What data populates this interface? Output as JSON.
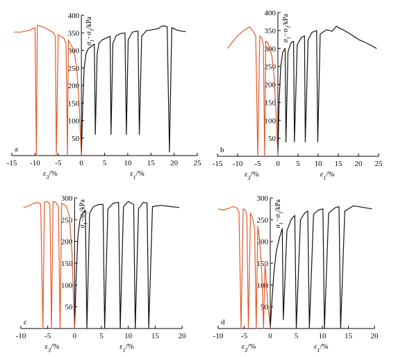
{
  "colors": {
    "axial": "#111111",
    "radial": "#e2582a",
    "axis": "#000000"
  },
  "chart_data": [
    {
      "type": "line",
      "panel_label": "a",
      "xlabel_left": "ε3/%",
      "xlabel_right": "ε1/%",
      "ylabel": "σ1−σ3/kPa",
      "xlim": [
        -15,
        25
      ],
      "ylim": [
        0,
        400
      ],
      "xticks": [
        -15,
        -10,
        -5,
        0,
        5,
        10,
        15,
        20,
        25
      ],
      "yticks": [
        50,
        100,
        150,
        200,
        250,
        300,
        350,
        400
      ],
      "series": [
        {
          "color": "axial",
          "x": [
            0.0,
            0.3,
            0.6,
            1.0,
            1.5,
            2.2,
            2.8,
            3.0,
            3.4,
            3.8,
            4.5,
            5.5,
            6.2,
            6.4,
            6.8,
            7.5,
            8.5,
            9.4,
            9.7,
            10.1,
            11.0,
            12.2,
            12.5,
            13.0,
            14.0,
            15.0,
            16.5,
            17.5,
            18.5,
            19.0,
            19.5,
            20.5,
            21.5,
            22.5
          ],
          "y": [
            0,
            150,
            250,
            290,
            305,
            312,
            318,
            60,
            290,
            320,
            330,
            336,
            340,
            60,
            320,
            342,
            348,
            350,
            60,
            330,
            352,
            355,
            60,
            340,
            356,
            358,
            362,
            370,
            368,
            10,
            365,
            358,
            355,
            353
          ]
        },
        {
          "color": "radial",
          "x": [
            0.0,
            -0.5,
            -1.0,
            -1.5,
            -2.0,
            -2.5,
            -2.8,
            -3.0,
            -3.3,
            -3.8,
            -4.5,
            -5.0,
            -5.4,
            -5.6,
            -6.0,
            -7.0,
            -8.0,
            -9.0,
            -9.5,
            -9.7,
            -10.0,
            -11.0,
            -12.0,
            -13.0,
            -14.5
          ],
          "y": [
            0,
            150,
            250,
            290,
            310,
            320,
            330,
            0,
            320,
            335,
            340,
            345,
            0,
            340,
            350,
            358,
            365,
            370,
            372,
            0,
            365,
            358,
            355,
            352,
            352
          ]
        }
      ]
    },
    {
      "type": "line",
      "panel_label": "b",
      "xlabel_left": "ε3/%",
      "xlabel_right": "ε1/%",
      "ylabel": "σ1−σ3/kPa",
      "xlim": [
        -15,
        25
      ],
      "ylim": [
        0,
        400
      ],
      "xticks": [
        -15,
        -10,
        -5,
        0,
        5,
        10,
        15,
        20,
        25
      ],
      "yticks": [
        50,
        100,
        150,
        200,
        250,
        300,
        350,
        400
      ],
      "series": [
        {
          "color": "axial",
          "x": [
            0.0,
            0.3,
            0.7,
            1.2,
            1.8,
            2.0,
            2.5,
            3.2,
            3.9,
            4.1,
            4.8,
            5.8,
            6.6,
            6.8,
            7.5,
            8.5,
            9.6,
            9.9,
            10.5,
            12.0,
            13.5,
            14.5,
            15.0,
            16.5,
            18.0,
            20.0,
            22.0,
            24.5
          ],
          "y": [
            0,
            150,
            250,
            290,
            300,
            40,
            290,
            315,
            320,
            40,
            310,
            330,
            335,
            40,
            325,
            345,
            350,
            40,
            340,
            352,
            348,
            362,
            358,
            350,
            340,
            325,
            315,
            300
          ]
        },
        {
          "color": "radial",
          "x": [
            0.0,
            -0.5,
            -1.0,
            -1.5,
            -2.0,
            -2.5,
            -3.0,
            -3.3,
            -3.6,
            -4.0,
            -4.5,
            -5.0,
            -5.5,
            -6.0,
            -7.0,
            -8.5,
            -10.0,
            -11.5,
            -12.5
          ],
          "y": [
            0,
            130,
            230,
            280,
            300,
            315,
            320,
            0,
            310,
            330,
            335,
            0,
            335,
            345,
            360,
            350,
            335,
            315,
            300
          ]
        }
      ]
    },
    {
      "type": "line",
      "panel_label": "c",
      "xlabel_left": "ε3/%",
      "xlabel_right": "ε1/%",
      "ylabel": "σ1−σ3/kPa",
      "xlim": [
        -10,
        20
      ],
      "ylim": [
        0,
        300
      ],
      "xticks": [
        -10,
        -5,
        0,
        5,
        10,
        15,
        20
      ],
      "yticks": [
        50,
        100,
        150,
        200,
        250,
        300
      ],
      "series": [
        {
          "color": "axial",
          "x": [
            0.0,
            0.3,
            0.6,
            1.0,
            1.5,
            2.0,
            2.3,
            2.8,
            3.5,
            4.5,
            5.3,
            5.6,
            6.2,
            7.2,
            8.2,
            8.5,
            9.1,
            10.0,
            11.0,
            11.3,
            11.9,
            12.8,
            13.5,
            13.8,
            14.5,
            16.0,
            18.0,
            19.5
          ],
          "y": [
            0,
            120,
            210,
            250,
            265,
            272,
            0,
            265,
            280,
            285,
            285,
            0,
            275,
            288,
            290,
            0,
            280,
            292,
            285,
            0,
            275,
            290,
            288,
            0,
            280,
            283,
            280,
            278
          ]
        },
        {
          "color": "radial",
          "x": [
            0.0,
            -0.5,
            -1.0,
            -1.5,
            -2.0,
            -2.4,
            -2.7,
            -3.0,
            -3.5,
            -4.0,
            -4.3,
            -4.6,
            -5.0,
            -5.6,
            -5.9,
            -6.3,
            -6.8,
            -7.5,
            -8.5,
            -9.5
          ],
          "y": [
            0,
            180,
            260,
            280,
            285,
            288,
            0,
            280,
            290,
            292,
            0,
            285,
            292,
            290,
            0,
            285,
            290,
            288,
            282,
            278
          ]
        }
      ]
    },
    {
      "type": "line",
      "panel_label": "d",
      "xlabel_left": "ε3/%",
      "xlabel_right": "ε1/%",
      "ylabel": "σ1−σ3/kPa",
      "xlim": [
        -10,
        20
      ],
      "ylim": [
        0,
        300
      ],
      "xticks": [
        -10,
        -5,
        0,
        5,
        10,
        15,
        20
      ],
      "yticks": [
        50,
        100,
        150,
        200,
        250,
        300
      ],
      "series": [
        {
          "color": "axial",
          "x": [
            0.0,
            0.3,
            0.7,
            1.2,
            1.8,
            2.3,
            2.5,
            3.2,
            4.0,
            4.7,
            5.0,
            5.8,
            6.6,
            7.2,
            7.5,
            8.3,
            9.2,
            10.1,
            10.4,
            11.2,
            12.5,
            13.2,
            13.5,
            14.3,
            16.0,
            18.0,
            19.5
          ],
          "y": [
            0,
            60,
            130,
            180,
            210,
            230,
            20,
            225,
            250,
            260,
            0,
            250,
            265,
            270,
            0,
            262,
            272,
            275,
            0,
            265,
            278,
            280,
            0,
            270,
            282,
            278,
            275
          ]
        },
        {
          "color": "radial",
          "x": [
            0.0,
            -0.5,
            -1.0,
            -1.3,
            -1.6,
            -2.0,
            -2.4,
            -2.7,
            -3.0,
            -3.4,
            -3.8,
            -4.2,
            -4.5,
            -4.8,
            -5.2,
            -5.6,
            -6.0,
            -6.5,
            -7.2,
            -8.0,
            -9.0,
            -10.0
          ],
          "y": [
            0,
            60,
            150,
            0,
            120,
            200,
            235,
            0,
            230,
            255,
            265,
            0,
            260,
            272,
            275,
            0,
            268,
            278,
            280,
            276,
            272,
            275
          ]
        }
      ]
    }
  ]
}
